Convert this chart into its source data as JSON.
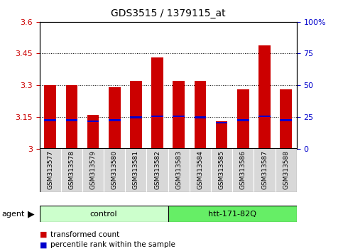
{
  "title": "GDS3515 / 1379115_at",
  "samples": [
    "GSM313577",
    "GSM313578",
    "GSM313579",
    "GSM313580",
    "GSM313581",
    "GSM313582",
    "GSM313583",
    "GSM313584",
    "GSM313585",
    "GSM313586",
    "GSM313587",
    "GSM313588"
  ],
  "red_values": [
    3.3,
    3.3,
    3.16,
    3.29,
    3.32,
    3.43,
    3.32,
    3.32,
    3.13,
    3.28,
    3.49,
    3.28
  ],
  "blue_values": [
    3.135,
    3.135,
    3.13,
    3.135,
    3.148,
    3.152,
    3.152,
    3.148,
    3.122,
    3.135,
    3.153,
    3.135
  ],
  "y_min": 3.0,
  "y_max": 3.6,
  "y_ticks": [
    3.0,
    3.15,
    3.3,
    3.45,
    3.6
  ],
  "y_tick_labels": [
    "3",
    "3.15",
    "3.3",
    "3.45",
    "3.6"
  ],
  "right_y_ticks": [
    0,
    25,
    50,
    75,
    100
  ],
  "right_y_labels": [
    "0",
    "25",
    "50",
    "75",
    "100%"
  ],
  "groups": [
    {
      "label": "control",
      "start": 0,
      "end": 6,
      "color": "#ccffcc"
    },
    {
      "label": "htt-171-82Q",
      "start": 6,
      "end": 12,
      "color": "#66ee66"
    }
  ],
  "bar_color_red": "#cc0000",
  "bar_color_blue": "#0000cc",
  "bar_width": 0.55,
  "agent_label": "agent",
  "legend_red": "transformed count",
  "legend_blue": "percentile rank within the sample",
  "tick_label_color_left": "#cc0000",
  "tick_label_color_right": "#0000cc",
  "blue_bar_height": 0.008
}
